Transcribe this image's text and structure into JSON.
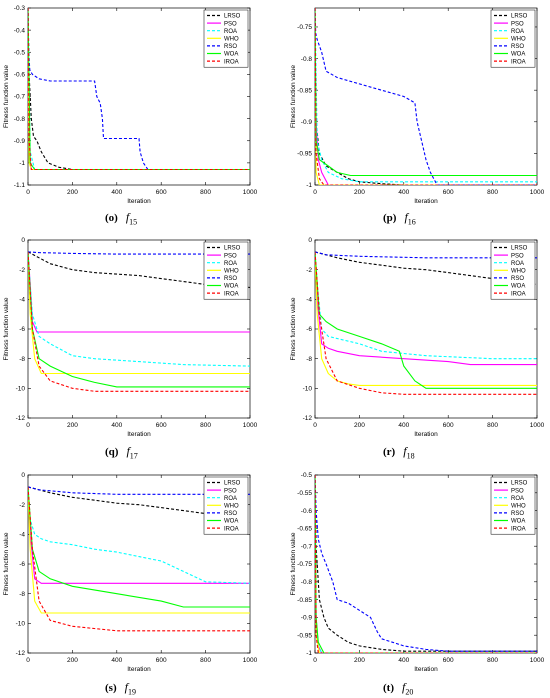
{
  "series_meta": [
    {
      "name": "LRSO",
      "color": "#000000",
      "dash": true
    },
    {
      "name": "PSO",
      "color": "#ff00ff",
      "dash": false
    },
    {
      "name": "ROA",
      "color": "#00ffff",
      "dash": true
    },
    {
      "name": "WHO",
      "color": "#ffff00",
      "dash": false
    },
    {
      "name": "RSO",
      "color": "#0000ff",
      "dash": true
    },
    {
      "name": "WOA",
      "color": "#00ff00",
      "dash": false
    },
    {
      "name": "IROA",
      "color": "#ff0000",
      "dash": true
    }
  ],
  "chart_data": [
    {
      "type": "line",
      "panel": "(o)",
      "func_name": "f",
      "func_sub": "15",
      "xlabel": "Iteration",
      "ylabel": "Fitness function value",
      "xlim": [
        0,
        1000
      ],
      "ylim": [
        -1.1,
        -0.3
      ],
      "xticks": [
        0,
        200,
        400,
        600,
        800,
        1000
      ],
      "yticks": [
        -1.1,
        -1,
        -0.9,
        -0.8,
        -0.7,
        -0.6,
        -0.5,
        -0.4,
        -0.3
      ],
      "legend": "top-right",
      "series": [
        {
          "name": "LRSO",
          "x": [
            0,
            5,
            15,
            25,
            40,
            60,
            90,
            140,
            200,
            1000
          ],
          "y": [
            -0.3,
            -0.6,
            -0.8,
            -0.88,
            -0.9,
            -0.95,
            -1.0,
            -1.02,
            -1.03,
            -1.03
          ]
        },
        {
          "name": "PSO",
          "x": [
            0,
            5,
            15,
            1000
          ],
          "y": [
            -0.3,
            -0.95,
            -1.03,
            -1.03
          ]
        },
        {
          "name": "ROA",
          "x": [
            0,
            10,
            30,
            1000
          ],
          "y": [
            -0.3,
            -0.95,
            -1.03,
            -1.03
          ]
        },
        {
          "name": "WHO",
          "x": [
            0,
            5,
            15,
            1000
          ],
          "y": [
            -0.3,
            -1.0,
            -1.03,
            -1.03
          ]
        },
        {
          "name": "RSO",
          "x": [
            0,
            3,
            8,
            20,
            50,
            100,
            300,
            310,
            325,
            335,
            340,
            500,
            505,
            520,
            540,
            1000
          ],
          "y": [
            -0.3,
            -0.5,
            -0.58,
            -0.6,
            -0.62,
            -0.63,
            -0.63,
            -0.7,
            -0.73,
            -0.8,
            -0.89,
            -0.89,
            -0.95,
            -1.0,
            -1.03,
            -1.03
          ]
        },
        {
          "name": "WOA",
          "x": [
            0,
            10,
            30,
            1000
          ],
          "y": [
            -0.3,
            -1.0,
            -1.03,
            -1.03
          ]
        },
        {
          "name": "IROA",
          "x": [
            0,
            5,
            15,
            1000
          ],
          "y": [
            -0.3,
            -0.9,
            -1.03,
            -1.03
          ]
        }
      ]
    },
    {
      "type": "line",
      "panel": "(p)",
      "func_name": "f",
      "func_sub": "16",
      "xlabel": "Iteration",
      "ylabel": "Fitness function value",
      "xlim": [
        0,
        1000
      ],
      "ylim": [
        -1,
        -0.72
      ],
      "xticks": [
        0,
        200,
        400,
        600,
        800,
        1000
      ],
      "yticks": [
        -1,
        -0.95,
        -0.9,
        -0.85,
        -0.8,
        -0.75
      ],
      "legend": "top-right",
      "series": [
        {
          "name": "LRSO",
          "x": [
            0,
            5,
            20,
            50,
            100,
            150,
            200,
            300,
            400,
            600,
            1000
          ],
          "y": [
            -0.72,
            -0.9,
            -0.95,
            -0.97,
            -0.98,
            -0.99,
            -0.995,
            -0.998,
            -1.0,
            -1.0,
            -1.0
          ]
        },
        {
          "name": "PSO",
          "x": [
            0,
            5,
            15,
            30,
            60,
            1000
          ],
          "y": [
            -0.72,
            -0.9,
            -0.96,
            -0.98,
            -1.0,
            -1.0
          ]
        },
        {
          "name": "ROA",
          "x": [
            0,
            10,
            30,
            60,
            120,
            200,
            550,
            1000
          ],
          "y": [
            -0.72,
            -0.93,
            -0.96,
            -0.98,
            -0.99,
            -0.995,
            -0.995,
            -0.995
          ]
        },
        {
          "name": "WHO",
          "x": [
            0,
            5,
            20,
            1000
          ],
          "y": [
            -0.72,
            -0.98,
            -1.0,
            -1.0
          ]
        },
        {
          "name": "RSO",
          "x": [
            0,
            3,
            10,
            30,
            50,
            100,
            150,
            200,
            300,
            350,
            400,
            450,
            460,
            480,
            500,
            520,
            550,
            1000
          ],
          "y": [
            -0.72,
            -0.76,
            -0.77,
            -0.79,
            -0.82,
            -0.83,
            -0.835,
            -0.84,
            -0.85,
            -0.855,
            -0.86,
            -0.87,
            -0.9,
            -0.93,
            -0.96,
            -0.98,
            -1.0,
            -1.0
          ]
        },
        {
          "name": "WOA",
          "x": [
            0,
            5,
            20,
            60,
            100,
            160,
            1000
          ],
          "y": [
            -0.72,
            -0.93,
            -0.96,
            -0.97,
            -0.98,
            -0.985,
            -0.985
          ]
        },
        {
          "name": "IROA",
          "x": [
            0,
            5,
            20,
            40,
            1000
          ],
          "y": [
            -0.72,
            -0.95,
            -0.99,
            -1.0,
            -1.0
          ]
        }
      ]
    },
    {
      "type": "line",
      "panel": "(q)",
      "func_name": "f",
      "func_sub": "17",
      "xlabel": "Iteration",
      "ylabel": "Fitness function value",
      "xlim": [
        0,
        1000
      ],
      "ylim": [
        -12,
        0
      ],
      "xticks": [
        0,
        200,
        400,
        600,
        800,
        1000
      ],
      "yticks": [
        -12,
        -10,
        -8,
        -6,
        -4,
        -2,
        0
      ],
      "legend": "top-right",
      "series": [
        {
          "name": "LRSO",
          "x": [
            0,
            50,
            100,
            200,
            300,
            400,
            500,
            600,
            700,
            800,
            900,
            1000
          ],
          "y": [
            -0.8,
            -1.2,
            -1.6,
            -2.0,
            -2.2,
            -2.3,
            -2.4,
            -2.6,
            -2.8,
            -3.0,
            -3.0,
            -3.2
          ]
        },
        {
          "name": "PSO",
          "x": [
            0,
            10,
            20,
            40,
            1000
          ],
          "y": [
            -0.8,
            -3.0,
            -5.5,
            -6.2,
            -6.2
          ]
        },
        {
          "name": "ROA",
          "x": [
            0,
            10,
            20,
            50,
            100,
            200,
            300,
            500,
            700,
            1000
          ],
          "y": [
            -0.8,
            -3.0,
            -5.0,
            -6.5,
            -7.0,
            -7.8,
            -8.0,
            -8.2,
            -8.4,
            -8.5
          ]
        },
        {
          "name": "WHO",
          "x": [
            0,
            10,
            30,
            60,
            1000
          ],
          "y": [
            -0.8,
            -5.0,
            -8.0,
            -9.0,
            -9.0
          ]
        },
        {
          "name": "RSO",
          "x": [
            0,
            50,
            200,
            400,
            1000
          ],
          "y": [
            -0.8,
            -0.85,
            -0.9,
            -0.95,
            -0.95
          ]
        },
        {
          "name": "WOA",
          "x": [
            0,
            20,
            50,
            100,
            200,
            300,
            400,
            1000
          ],
          "y": [
            -0.8,
            -6.0,
            -8.0,
            -8.5,
            -9.2,
            -9.6,
            -9.9,
            -9.9
          ]
        },
        {
          "name": "IROA",
          "x": [
            0,
            20,
            50,
            100,
            200,
            300,
            1000
          ],
          "y": [
            -0.8,
            -6.0,
            -8.5,
            -9.5,
            -10.0,
            -10.2,
            -10.2
          ]
        }
      ]
    },
    {
      "type": "line",
      "panel": "(r)",
      "func_name": "f",
      "func_sub": "18",
      "xlabel": "Iteration",
      "ylabel": "Fitness function value",
      "xlim": [
        0,
        1000
      ],
      "ylim": [
        -12,
        0
      ],
      "xticks": [
        0,
        200,
        400,
        600,
        800,
        1000
      ],
      "yticks": [
        -12,
        -10,
        -8,
        -6,
        -4,
        -2,
        0
      ],
      "legend": "top-right",
      "series": [
        {
          "name": "LRSO",
          "x": [
            0,
            50,
            100,
            200,
            300,
            400,
            500,
            600,
            700,
            800,
            900,
            1000
          ],
          "y": [
            -0.8,
            -1.0,
            -1.2,
            -1.5,
            -1.7,
            -1.9,
            -2.0,
            -2.2,
            -2.4,
            -2.6,
            -2.8,
            -3.0
          ]
        },
        {
          "name": "PSO",
          "x": [
            0,
            10,
            30,
            60,
            100,
            200,
            400,
            600,
            700,
            1000
          ],
          "y": [
            -0.8,
            -4.0,
            -7.0,
            -7.3,
            -7.5,
            -7.8,
            -8.0,
            -8.2,
            -8.4,
            -8.4
          ]
        },
        {
          "name": "ROA",
          "x": [
            0,
            10,
            30,
            60,
            200,
            300,
            500,
            800,
            1000
          ],
          "y": [
            -0.8,
            -3.0,
            -6.0,
            -6.5,
            -7.0,
            -7.5,
            -7.8,
            -8.0,
            -8.0
          ]
        },
        {
          "name": "WHO",
          "x": [
            0,
            10,
            30,
            60,
            100,
            150,
            200,
            1000
          ],
          "y": [
            -0.8,
            -5.0,
            -8.0,
            -9.0,
            -9.5,
            -9.7,
            -9.8,
            -9.8
          ]
        },
        {
          "name": "RSO",
          "x": [
            0,
            50,
            200,
            500,
            1000
          ],
          "y": [
            -0.8,
            -1.0,
            -1.1,
            -1.2,
            -1.2
          ]
        },
        {
          "name": "WOA",
          "x": [
            0,
            20,
            50,
            100,
            200,
            300,
            380,
            400,
            450,
            500,
            1000
          ],
          "y": [
            -0.8,
            -5.0,
            -5.5,
            -6.0,
            -6.5,
            -7.0,
            -7.5,
            -8.5,
            -9.5,
            -10.0,
            -10.0
          ]
        },
        {
          "name": "IROA",
          "x": [
            0,
            20,
            50,
            100,
            200,
            300,
            400,
            1000
          ],
          "y": [
            -0.8,
            -5.0,
            -8.0,
            -9.5,
            -10.0,
            -10.3,
            -10.4,
            -10.4
          ]
        }
      ]
    },
    {
      "type": "line",
      "panel": "(s)",
      "func_name": "f",
      "func_sub": "19",
      "xlabel": "Iteration",
      "ylabel": "Fitness function value",
      "xlim": [
        0,
        1000
      ],
      "ylim": [
        -12,
        0
      ],
      "xticks": [
        0,
        200,
        400,
        600,
        800,
        1000
      ],
      "yticks": [
        -12,
        -10,
        -8,
        -6,
        -4,
        -2,
        0
      ],
      "legend": "top-right",
      "series": [
        {
          "name": "LRSO",
          "x": [
            0,
            50,
            100,
            200,
            300,
            400,
            500,
            600,
            700,
            800,
            900,
            1000
          ],
          "y": [
            -0.8,
            -1.0,
            -1.2,
            -1.5,
            -1.7,
            -1.9,
            -2.0,
            -2.2,
            -2.4,
            -2.6,
            -2.9,
            -3.2
          ]
        },
        {
          "name": "PSO",
          "x": [
            0,
            10,
            30,
            60,
            1000
          ],
          "y": [
            -0.8,
            -4.0,
            -7.0,
            -7.3,
            -7.3
          ]
        },
        {
          "name": "ROA",
          "x": [
            0,
            10,
            30,
            60,
            100,
            200,
            300,
            400,
            500,
            600,
            700,
            800,
            1000
          ],
          "y": [
            -0.8,
            -3.0,
            -4.0,
            -4.3,
            -4.5,
            -4.7,
            -5.0,
            -5.2,
            -5.5,
            -5.8,
            -6.5,
            -7.2,
            -7.3
          ]
        },
        {
          "name": "WHO",
          "x": [
            0,
            10,
            30,
            60,
            1000
          ],
          "y": [
            -0.8,
            -5.0,
            -8.5,
            -9.3,
            -9.3
          ]
        },
        {
          "name": "RSO",
          "x": [
            0,
            50,
            200,
            400,
            1000
          ],
          "y": [
            -0.8,
            -1.0,
            -1.2,
            -1.3,
            -1.3
          ]
        },
        {
          "name": "WOA",
          "x": [
            0,
            20,
            50,
            100,
            200,
            400,
            600,
            700,
            1000
          ],
          "y": [
            -0.8,
            -5.0,
            -6.5,
            -7.0,
            -7.5,
            -8.0,
            -8.5,
            -8.9,
            -8.9
          ]
        },
        {
          "name": "IROA",
          "x": [
            0,
            20,
            50,
            100,
            200,
            400,
            1000
          ],
          "y": [
            -0.8,
            -5.0,
            -8.5,
            -9.8,
            -10.2,
            -10.5,
            -10.5
          ]
        }
      ]
    },
    {
      "type": "line",
      "panel": "(t)",
      "func_name": "f",
      "func_sub": "20",
      "xlabel": "Iteration",
      "ylabel": "Fitness function value",
      "xlim": [
        0,
        1000
      ],
      "ylim": [
        -1,
        -0.5
      ],
      "xticks": [
        0,
        200,
        400,
        600,
        800,
        1000
      ],
      "yticks": [
        -1,
        -0.95,
        -0.9,
        -0.85,
        -0.8,
        -0.75,
        -0.7,
        -0.65,
        -0.6,
        -0.55,
        -0.5
      ],
      "legend": "top-right",
      "series": [
        {
          "name": "LRSO",
          "x": [
            0,
            5,
            20,
            40,
            60,
            100,
            150,
            200,
            300,
            400,
            1000
          ],
          "y": [
            -0.5,
            -0.7,
            -0.85,
            -0.9,
            -0.93,
            -0.95,
            -0.97,
            -0.98,
            -0.99,
            -0.995,
            -0.995
          ]
        },
        {
          "name": "PSO",
          "x": [
            0,
            5,
            15,
            30,
            1000
          ],
          "y": [
            -0.5,
            -0.9,
            -0.98,
            -1.0,
            -1.0
          ]
        },
        {
          "name": "ROA",
          "x": [
            0,
            5,
            15,
            30,
            1000
          ],
          "y": [
            -0.5,
            -0.92,
            -0.98,
            -1.0,
            -1.0
          ]
        },
        {
          "name": "WHO",
          "x": [
            0,
            5,
            20,
            1000
          ],
          "y": [
            -0.5,
            -0.95,
            -1.0,
            -1.0
          ]
        },
        {
          "name": "RSO",
          "x": [
            0,
            5,
            15,
            30,
            50,
            80,
            100,
            150,
            200,
            250,
            280,
            300,
            350,
            400,
            500,
            600,
            1000
          ],
          "y": [
            -0.5,
            -0.6,
            -0.68,
            -0.72,
            -0.75,
            -0.8,
            -0.85,
            -0.86,
            -0.88,
            -0.9,
            -0.94,
            -0.96,
            -0.97,
            -0.98,
            -0.99,
            -0.995,
            -0.995
          ]
        },
        {
          "name": "WOA",
          "x": [
            0,
            5,
            15,
            40,
            1000
          ],
          "y": [
            -0.5,
            -0.9,
            -0.97,
            -1.0,
            -1.0
          ]
        },
        {
          "name": "IROA",
          "x": [
            0,
            5,
            15,
            1000
          ],
          "y": [
            -0.5,
            -0.95,
            -1.0,
            -1.0
          ]
        }
      ]
    }
  ]
}
